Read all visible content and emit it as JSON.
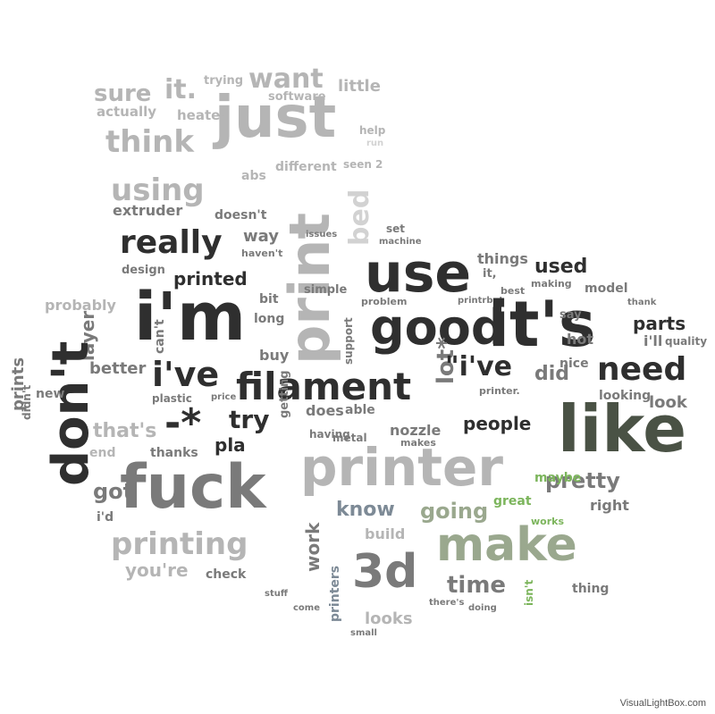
{
  "watermark": "VisualLightBox.com",
  "colors": {
    "dark": "#2f2f2f",
    "mid": "#7a7a7a",
    "light": "#b5b5b5",
    "pale": "#d2d2d2",
    "green": "#7cb55c",
    "sage": "#9aa88e",
    "olive": "#4a5245",
    "slate": "#7d8a96"
  },
  "words": [
    {
      "text": "just",
      "weight": 64,
      "color": "light",
      "rotate": 0
    },
    {
      "text": "want",
      "weight": 30,
      "color": "light",
      "rotate": 0
    },
    {
      "text": "sure",
      "weight": 26,
      "color": "light",
      "rotate": 0
    },
    {
      "text": "it.",
      "weight": 30,
      "color": "light",
      "rotate": 0
    },
    {
      "text": "little",
      "weight": 18,
      "color": "light",
      "rotate": 0
    },
    {
      "text": "actually",
      "weight": 15,
      "color": "light",
      "rotate": 0
    },
    {
      "text": "think",
      "weight": 34,
      "color": "light",
      "rotate": 0
    },
    {
      "text": "heated",
      "weight": 15,
      "color": "light",
      "rotate": 0
    },
    {
      "text": "trying",
      "weight": 13,
      "color": "light",
      "rotate": 0
    },
    {
      "text": "software",
      "weight": 13,
      "color": "light",
      "rotate": 0
    },
    {
      "text": "help",
      "weight": 12,
      "color": "light",
      "rotate": 0
    },
    {
      "text": "run",
      "weight": 10,
      "color": "pale",
      "rotate": 0
    },
    {
      "text": "using",
      "weight": 34,
      "color": "light",
      "rotate": 0
    },
    {
      "text": "abs",
      "weight": 14,
      "color": "light",
      "rotate": 0
    },
    {
      "text": "different",
      "weight": 14,
      "color": "light",
      "rotate": 0
    },
    {
      "text": "seen",
      "weight": 12,
      "color": "light",
      "rotate": 0
    },
    {
      "text": "2",
      "weight": 12,
      "color": "light",
      "rotate": 0
    },
    {
      "text": "print",
      "weight": 62,
      "color": "light",
      "rotate": -90
    },
    {
      "text": "bed",
      "weight": 30,
      "color": "pale",
      "rotate": -90
    },
    {
      "text": "extruder",
      "weight": 16,
      "color": "mid",
      "rotate": 0
    },
    {
      "text": "doesn't",
      "weight": 14,
      "color": "mid",
      "rotate": 0
    },
    {
      "text": "really",
      "weight": 36,
      "color": "dark",
      "rotate": 0
    },
    {
      "text": "way",
      "weight": 18,
      "color": "mid",
      "rotate": 0
    },
    {
      "text": "haven't",
      "weight": 11,
      "color": "mid",
      "rotate": 0
    },
    {
      "text": "issues",
      "weight": 10,
      "color": "mid",
      "rotate": 0
    },
    {
      "text": "set",
      "weight": 12,
      "color": "mid",
      "rotate": 0
    },
    {
      "text": "machine",
      "weight": 10,
      "color": "mid",
      "rotate": 0
    },
    {
      "text": "use",
      "weight": 60,
      "color": "dark",
      "rotate": 0
    },
    {
      "text": "things",
      "weight": 16,
      "color": "mid",
      "rotate": 0
    },
    {
      "text": "it,",
      "weight": 13,
      "color": "mid",
      "rotate": 0
    },
    {
      "text": "best",
      "weight": 11,
      "color": "mid",
      "rotate": 0
    },
    {
      "text": "used",
      "weight": 22,
      "color": "dark",
      "rotate": 0
    },
    {
      "text": "making",
      "weight": 11,
      "color": "mid",
      "rotate": 0
    },
    {
      "text": "model",
      "weight": 14,
      "color": "mid",
      "rotate": 0
    },
    {
      "text": "design",
      "weight": 13,
      "color": "mid",
      "rotate": 0
    },
    {
      "text": "printed",
      "weight": 20,
      "color": "dark",
      "rotate": 0
    },
    {
      "text": "simple",
      "weight": 13,
      "color": "mid",
      "rotate": 0
    },
    {
      "text": "bit",
      "weight": 14,
      "color": "mid",
      "rotate": 0
    },
    {
      "text": "problem",
      "weight": 11,
      "color": "mid",
      "rotate": 0
    },
    {
      "text": "printrbot",
      "weight": 10,
      "color": "mid",
      "rotate": 0
    },
    {
      "text": "thank",
      "weight": 10,
      "color": "mid",
      "rotate": 0
    },
    {
      "text": "i'm",
      "weight": 74,
      "color": "dark",
      "rotate": 0
    },
    {
      "text": "long",
      "weight": 14,
      "color": "mid",
      "rotate": 0
    },
    {
      "text": "good",
      "weight": 54,
      "color": "dark",
      "rotate": 0
    },
    {
      "text": "it's",
      "weight": 70,
      "color": "dark",
      "rotate": 0
    },
    {
      "text": "probably",
      "weight": 16,
      "color": "light",
      "rotate": 0
    },
    {
      "text": "layer",
      "weight": 20,
      "color": "mid",
      "rotate": -90
    },
    {
      "text": "can't",
      "weight": 14,
      "color": "mid",
      "rotate": -90
    },
    {
      "text": "say",
      "weight": 13,
      "color": "mid",
      "rotate": 0
    },
    {
      "text": "parts",
      "weight": 20,
      "color": "dark",
      "rotate": 0
    },
    {
      "text": "support",
      "weight": 12,
      "color": "mid",
      "rotate": -90
    },
    {
      "text": "hot",
      "weight": 16,
      "color": "mid",
      "rotate": 0
    },
    {
      "text": "i'll",
      "weight": 16,
      "color": "mid",
      "rotate": 0
    },
    {
      "text": "quality",
      "weight": 12,
      "color": "mid",
      "rotate": 0
    },
    {
      "text": "need",
      "weight": 36,
      "color": "dark",
      "rotate": 0
    },
    {
      "text": "don't",
      "weight": 56,
      "color": "dark",
      "rotate": -90
    },
    {
      "text": "prints",
      "weight": 18,
      "color": "mid",
      "rotate": -90
    },
    {
      "text": "i've",
      "weight": 38,
      "color": "dark",
      "rotate": 0
    },
    {
      "text": "filament",
      "weight": 42,
      "color": "dark",
      "rotate": 0
    },
    {
      "text": "buy",
      "weight": 16,
      "color": "mid",
      "rotate": 0
    },
    {
      "text": "lot*",
      "weight": 26,
      "color": "mid",
      "rotate": -90
    },
    {
      "text": "\"i've",
      "weight": 30,
      "color": "dark",
      "rotate": 0
    },
    {
      "text": "did",
      "weight": 22,
      "color": "mid",
      "rotate": 0
    },
    {
      "text": "nice",
      "weight": 14,
      "color": "mid",
      "rotate": 0
    },
    {
      "text": "better",
      "weight": 18,
      "color": "mid",
      "rotate": 0
    },
    {
      "text": "plastic",
      "weight": 12,
      "color": "mid",
      "rotate": 0
    },
    {
      "text": "price",
      "weight": 10,
      "color": "mid",
      "rotate": 0
    },
    {
      "text": "looking",
      "weight": 14,
      "color": "mid",
      "rotate": 0
    },
    {
      "text": "look",
      "weight": 18,
      "color": "mid",
      "rotate": 0
    },
    {
      "text": "new",
      "weight": 14,
      "color": "mid",
      "rotate": 0
    },
    {
      "text": "didn't",
      "weight": 12,
      "color": "mid",
      "rotate": -90
    },
    {
      "text": "-*",
      "weight": 44,
      "color": "dark",
      "rotate": 0
    },
    {
      "text": "try",
      "weight": 28,
      "color": "dark",
      "rotate": 0
    },
    {
      "text": "does",
      "weight": 16,
      "color": "mid",
      "rotate": 0
    },
    {
      "text": "able",
      "weight": 14,
      "color": "mid",
      "rotate": 0
    },
    {
      "text": "people",
      "weight": 20,
      "color": "dark",
      "rotate": 0
    },
    {
      "text": "printer.",
      "weight": 11,
      "color": "mid",
      "rotate": 0
    },
    {
      "text": "like",
      "weight": 72,
      "color": "olive",
      "rotate": 0
    },
    {
      "text": "that's",
      "weight": 22,
      "color": "light",
      "rotate": 0
    },
    {
      "text": "pla",
      "weight": 20,
      "color": "dark",
      "rotate": 0
    },
    {
      "text": "getting",
      "weight": 13,
      "color": "mid",
      "rotate": -90
    },
    {
      "text": "having",
      "weight": 12,
      "color": "mid",
      "rotate": 0
    },
    {
      "text": "metal",
      "weight": 12,
      "color": "mid",
      "rotate": 0
    },
    {
      "text": "nozzle",
      "weight": 16,
      "color": "mid",
      "rotate": 0
    },
    {
      "text": "makes",
      "weight": 11,
      "color": "mid",
      "rotate": 0
    },
    {
      "text": "end",
      "weight": 14,
      "color": "light",
      "rotate": 0
    },
    {
      "text": "thanks",
      "weight": 14,
      "color": "mid",
      "rotate": 0
    },
    {
      "text": "fuck",
      "weight": 68,
      "color": "mid",
      "rotate": 0
    },
    {
      "text": "printer",
      "weight": 58,
      "color": "light",
      "rotate": 0
    },
    {
      "text": "pretty",
      "weight": 24,
      "color": "mid",
      "rotate": 0
    },
    {
      "text": "maybe",
      "weight": 14,
      "color": "green",
      "rotate": 0
    },
    {
      "text": "got",
      "weight": 24,
      "color": "mid",
      "rotate": 0
    },
    {
      "text": "i'd",
      "weight": 14,
      "color": "mid",
      "rotate": 0
    },
    {
      "text": "know",
      "weight": 22,
      "color": "slate",
      "rotate": 0
    },
    {
      "text": "going",
      "weight": 24,
      "color": "sage",
      "rotate": 0
    },
    {
      "text": "great",
      "weight": 14,
      "color": "green",
      "rotate": 0
    },
    {
      "text": "right",
      "weight": 16,
      "color": "mid",
      "rotate": 0
    },
    {
      "text": "work",
      "weight": 20,
      "color": "mid",
      "rotate": -90
    },
    {
      "text": "build",
      "weight": 16,
      "color": "light",
      "rotate": 0
    },
    {
      "text": "works",
      "weight": 11,
      "color": "green",
      "rotate": 0
    },
    {
      "text": "printing",
      "weight": 34,
      "color": "light",
      "rotate": 0
    },
    {
      "text": "make",
      "weight": 52,
      "color": "sage",
      "rotate": 0
    },
    {
      "text": "you're",
      "weight": 20,
      "color": "light",
      "rotate": 0
    },
    {
      "text": "check",
      "weight": 14,
      "color": "mid",
      "rotate": 0
    },
    {
      "text": "printers",
      "weight": 14,
      "color": "slate",
      "rotate": -90
    },
    {
      "text": "3d",
      "weight": 52,
      "color": "mid",
      "rotate": 0
    },
    {
      "text": "time",
      "weight": 26,
      "color": "mid",
      "rotate": 0
    },
    {
      "text": "isn't",
      "weight": 12,
      "color": "green",
      "rotate": -90
    },
    {
      "text": "thing",
      "weight": 14,
      "color": "mid",
      "rotate": 0
    },
    {
      "text": "stuff",
      "weight": 10,
      "color": "mid",
      "rotate": 0
    },
    {
      "text": "come",
      "weight": 10,
      "color": "mid",
      "rotate": 0
    },
    {
      "text": "looks",
      "weight": 18,
      "color": "light",
      "rotate": 0
    },
    {
      "text": "doing",
      "weight": 10,
      "color": "mid",
      "rotate": 0
    },
    {
      "text": "there's",
      "weight": 10,
      "color": "mid",
      "rotate": 0
    },
    {
      "text": "small",
      "weight": 10,
      "color": "mid",
      "rotate": 0
    }
  ]
}
